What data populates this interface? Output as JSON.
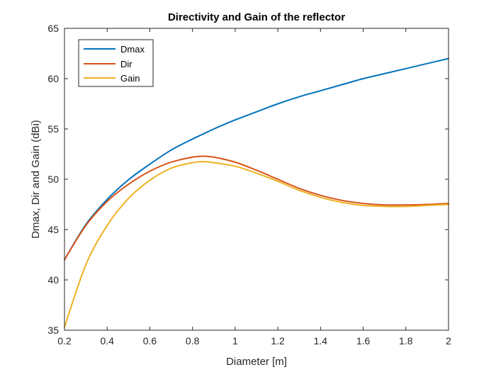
{
  "chart_data": {
    "type": "line",
    "title": "Directivity and Gain of the reflector",
    "xlabel": "Diameter [m]",
    "ylabel": "Dmax, Dir and Gain (dBi)",
    "xlim": [
      0.2,
      2
    ],
    "ylim": [
      35,
      65
    ],
    "xticks": [
      0.2,
      0.4,
      0.6,
      0.8,
      1,
      1.2,
      1.4,
      1.6,
      1.8,
      2
    ],
    "xtick_labels": [
      "0.2",
      "0.4",
      "0.6",
      "0.8",
      "1",
      "1.2",
      "1.4",
      "1.6",
      "1.8",
      "2"
    ],
    "yticks": [
      35,
      40,
      45,
      50,
      55,
      60,
      65
    ],
    "ytick_labels": [
      "35",
      "40",
      "45",
      "50",
      "55",
      "60",
      "65"
    ],
    "grid": false,
    "legend_position": "top-left",
    "x": [
      0.2,
      0.3,
      0.4,
      0.5,
      0.6,
      0.7,
      0.8,
      0.85,
      0.9,
      1.0,
      1.1,
      1.2,
      1.3,
      1.4,
      1.5,
      1.6,
      1.7,
      1.8,
      1.9,
      2.0
    ],
    "series": [
      {
        "name": "Dmax",
        "color": "#0072BD",
        "values": [
          42.0,
          45.5,
          48.0,
          49.95,
          51.5,
          52.9,
          54.0,
          54.5,
          55.0,
          55.9,
          56.7,
          57.5,
          58.2,
          58.8,
          59.4,
          60.0,
          60.5,
          61.0,
          61.5,
          62.0
        ]
      },
      {
        "name": "Dir",
        "color": "#D95319",
        "values": [
          42.0,
          45.4,
          47.8,
          49.5,
          50.8,
          51.7,
          52.2,
          52.3,
          52.2,
          51.7,
          50.9,
          50.0,
          49.1,
          48.4,
          47.9,
          47.6,
          47.45,
          47.45,
          47.5,
          47.6
        ]
      },
      {
        "name": "Gain",
        "color": "#EDB120",
        "values": [
          35.3,
          41.5,
          45.4,
          48.1,
          49.9,
          51.1,
          51.65,
          51.75,
          51.65,
          51.3,
          50.6,
          49.8,
          48.9,
          48.2,
          47.7,
          47.4,
          47.3,
          47.3,
          47.4,
          47.5
        ]
      }
    ]
  }
}
